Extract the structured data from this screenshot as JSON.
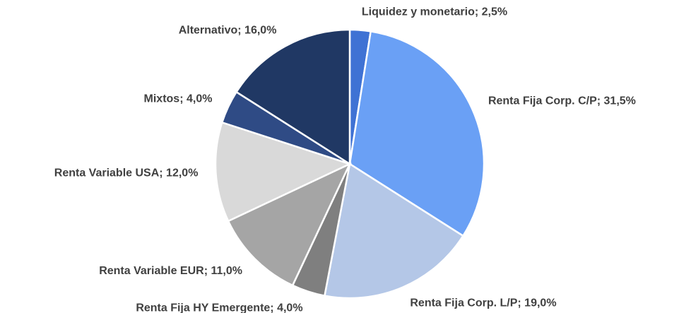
{
  "chart_data": {
    "type": "pie",
    "categories": [
      "Liquidez y monetario",
      "Renta Fija Corp. C/P",
      "Renta Fija Corp. L/P",
      "Renta Fija HY Emergente",
      "Renta Variable EUR",
      "Renta Variable USA",
      "Mixtos",
      "Alternativo"
    ],
    "values": [
      2.5,
      31.5,
      19.0,
      4.0,
      11.0,
      12.0,
      4.0,
      16.0
    ],
    "value_labels": [
      "2,5%",
      "31,5%",
      "19,0%",
      "4,0%",
      "11,0%",
      "12,0%",
      "4,0%",
      "16,0%"
    ],
    "label_separator": "; ",
    "colors": [
      "#3f72d4",
      "#6aa0f5",
      "#b4c7e7",
      "#7f7f7f",
      "#a5a5a5",
      "#d9d9d9",
      "#2f4b85",
      "#203864"
    ]
  }
}
